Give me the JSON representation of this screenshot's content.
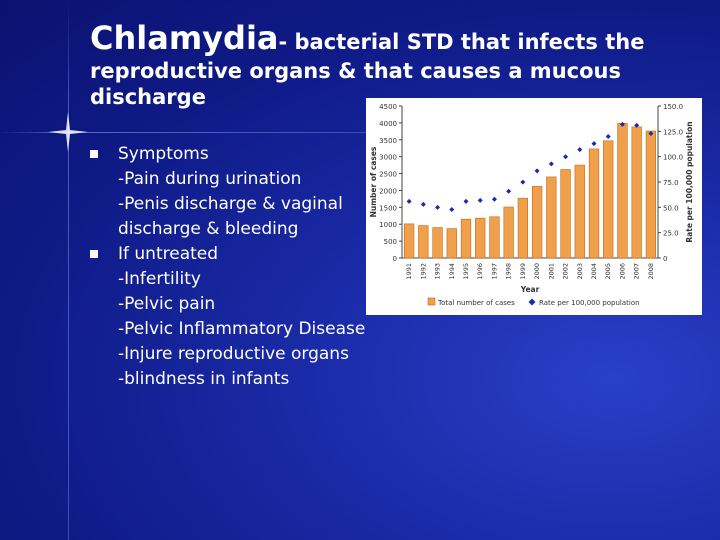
{
  "title": {
    "main": "Chlamydia",
    "rest_first": "- bacterial STD that infects the",
    "rest_second": "reproductive organs & that causes a mucous discharge"
  },
  "bullets": [
    {
      "heading": "Symptoms",
      "lines": [
        "-Pain during urination",
        "-Penis discharge & vaginal discharge & bleeding"
      ]
    },
    {
      "heading": "If untreated",
      "lines": [
        "-Infertility",
        "-Pelvic pain",
        "-Pelvic Inflammatory Disease",
        "-Injure reproductive organs",
        "-blindness in infants"
      ]
    }
  ],
  "chart_data": {
    "type": "bar",
    "categories": [
      "1991",
      "1992",
      "1993",
      "1994",
      "1995",
      "1996",
      "1997",
      "1998",
      "1999",
      "2000",
      "2001",
      "2002",
      "2003",
      "2004",
      "2005",
      "2006",
      "2007",
      "2008"
    ],
    "series": [
      {
        "name": "Total number of cases",
        "values": [
          1010,
          960,
          900,
          870,
          1150,
          1180,
          1220,
          1510,
          1770,
          2120,
          2400,
          2620,
          2750,
          3230,
          3470,
          3990,
          3880,
          3760
        ]
      },
      {
        "name": "Rate per 100,000 population",
        "values": [
          50,
          47,
          44,
          42,
          50,
          51,
          52,
          60,
          69,
          80,
          87,
          94,
          101,
          107,
          114,
          126,
          125,
          117
        ]
      }
    ],
    "ylabel": "Number of cases",
    "y2label": "Rate per 100,000 population",
    "xlabel": "Year",
    "ylim": [
      0,
      4500
    ],
    "y2lim": [
      0,
      150
    ],
    "y_ticks": [
      "0",
      "500",
      "1000",
      "1500",
      "2000",
      "2500",
      "3000",
      "3500",
      "4000",
      "4500"
    ],
    "y2_ticks": [
      "0",
      "25.0",
      "50.0",
      "75.0",
      "100.0",
      "125.0",
      "150.0"
    ],
    "colors": {
      "bars": "#f0a04b",
      "bar_border": "#c06a1c",
      "markers": "#1a2bb0"
    }
  }
}
